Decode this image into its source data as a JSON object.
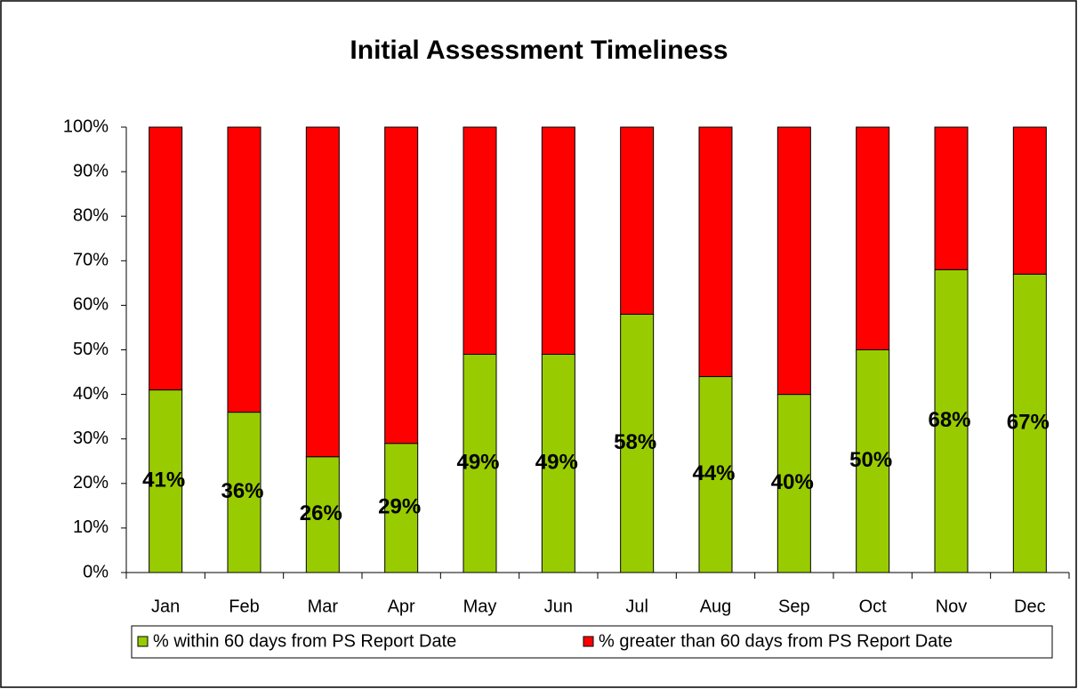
{
  "chart_data": {
    "type": "stacked_bar",
    "title": "Initial Assessment Timeliness",
    "categories": [
      "Jan",
      "Feb",
      "Mar",
      "Apr",
      "May",
      "Jun",
      "Jul",
      "Aug",
      "Sep",
      "Oct",
      "Nov",
      "Dec"
    ],
    "series": [
      {
        "name": "% within 60 days from PS Report Date",
        "color": "#99cc00",
        "values": [
          41,
          36,
          26,
          29,
          49,
          49,
          58,
          44,
          40,
          50,
          68,
          67
        ],
        "value_labels": [
          "41%",
          "36%",
          "26%",
          "29%",
          "49%",
          "49%",
          "58%",
          "44%",
          "40%",
          "50%",
          "68%",
          "67%"
        ]
      },
      {
        "name": "% greater than 60 days from PS Report Date",
        "color": "#ff0000",
        "values": [
          59,
          64,
          74,
          71,
          51,
          51,
          42,
          56,
          60,
          50,
          32,
          33
        ]
      }
    ],
    "ylim": [
      0,
      100
    ],
    "yticks": [
      {
        "value": 0,
        "label": "0%"
      },
      {
        "value": 10,
        "label": "10%"
      },
      {
        "value": 20,
        "label": "20%"
      },
      {
        "value": 30,
        "label": "30%"
      },
      {
        "value": 40,
        "label": "40%"
      },
      {
        "value": 50,
        "label": "50%"
      },
      {
        "value": 60,
        "label": "60%"
      },
      {
        "value": 70,
        "label": "70%"
      },
      {
        "value": 80,
        "label": "80%"
      },
      {
        "value": 90,
        "label": "90%"
      },
      {
        "value": 100,
        "label": "100%"
      }
    ],
    "legend": "bottom"
  }
}
